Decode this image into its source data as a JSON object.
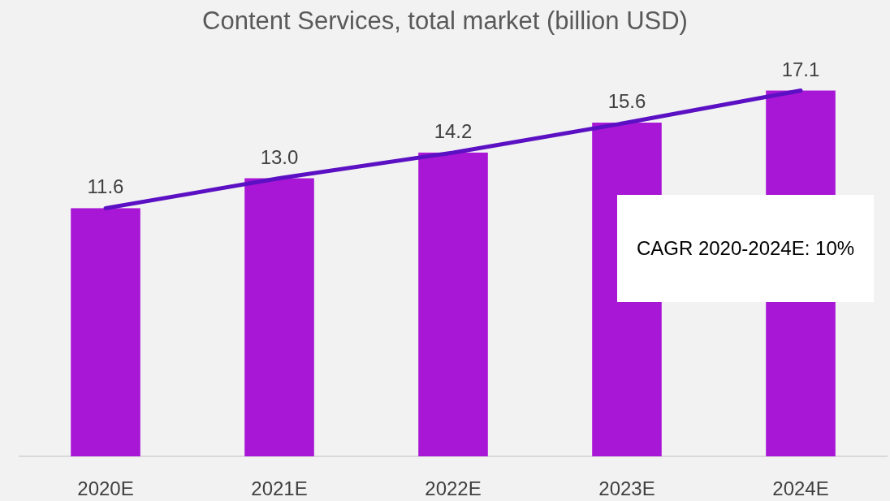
{
  "chart_data": {
    "type": "bar",
    "title": "Content Services, total market (billion USD)",
    "categories": [
      "2020E",
      "2021E",
      "2022E",
      "2023E",
      "2024E"
    ],
    "series": [
      {
        "type": "bar",
        "color": "#a817d6",
        "values": [
          11.6,
          13.0,
          14.2,
          15.6,
          17.1
        ],
        "value_labels": [
          "11.6",
          "13.0",
          "14.2",
          "15.6",
          "17.1"
        ]
      },
      {
        "type": "line",
        "color": "#5b10c4",
        "values": [
          11.6,
          13.0,
          14.2,
          15.6,
          17.1
        ]
      }
    ],
    "tick_labels": "x",
    "marker": "none",
    "line_style": "solid",
    "annotations": [
      "CAGR 2020-2024E: 10%"
    ]
  }
}
